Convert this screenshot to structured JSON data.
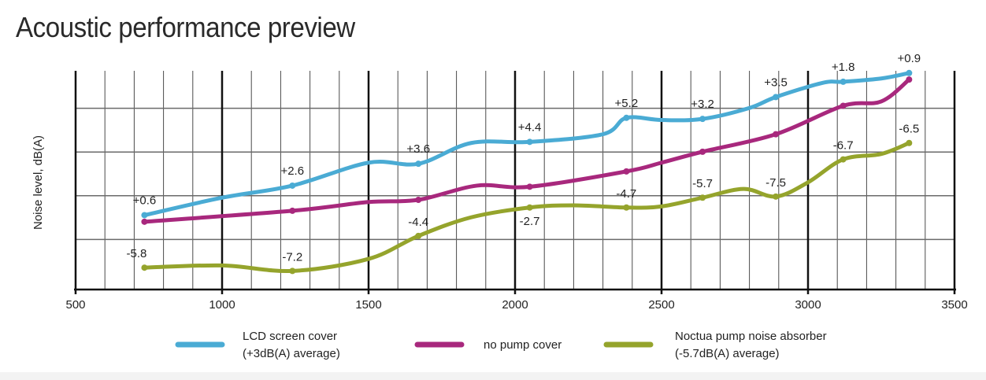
{
  "chart_data": {
    "type": "line",
    "title": "Acoustic performance preview",
    "xlabel": "",
    "ylabel": "Noise level, dB(A)",
    "xlim": [
      500,
      3500
    ],
    "x_ticks": [
      "500",
      "1000",
      "1500",
      "2000",
      "2500",
      "3000",
      "3500"
    ],
    "ylim": [
      0,
      100
    ],
    "grid": true,
    "legend": "bottom",
    "series": [
      {
        "name": "LCD screen cover (+3dB(A) average)",
        "legend_lines": [
          "LCD screen cover",
          "(+3dB(A) average)"
        ],
        "color": "#4aabd4",
        "x": [
          735,
          1000,
          1240,
          1500,
          1670,
          1850,
          2050,
          2300,
          2380,
          2500,
          2640,
          2800,
          2890,
          3050,
          3120,
          3250,
          3345
        ],
        "y": [
          34,
          42,
          47.5,
          58,
          57.5,
          67,
          67.5,
          71,
          78.5,
          77.5,
          78,
          83,
          88,
          94.5,
          95,
          96.5,
          99
        ],
        "point_x": [
          735,
          1240,
          1670,
          2050,
          2380,
          2640,
          2890,
          3120,
          3345
        ],
        "labels": [
          "+0.6",
          "+2.6",
          "+3.6",
          "+4.4",
          "+5.2",
          "+3.2",
          "+3.5",
          "+1.8",
          "+0.9"
        ]
      },
      {
        "name": "no pump cover",
        "legend_lines": [
          "no pump cover"
        ],
        "color": "#a8287d",
        "x": [
          735,
          1240,
          1500,
          1670,
          1870,
          2050,
          2380,
          2500,
          2640,
          2890,
          3120,
          3250,
          3345
        ],
        "y": [
          31,
          36,
          40,
          41,
          47.5,
          47,
          54,
          58,
          63,
          71,
          84,
          86,
          96
        ],
        "point_x": [
          735,
          1240,
          1670,
          2050,
          2380,
          2640,
          2890,
          3120,
          3345
        ],
        "labels": []
      },
      {
        "name": "Noctua pump noise absorber (-5.7dB(A) average)",
        "legend_lines": [
          "Noctua pump noise absorber",
          "(-5.7dB(A) average)"
        ],
        "color": "#95a42c",
        "x": [
          735,
          1000,
          1240,
          1500,
          1670,
          1850,
          2050,
          2200,
          2380,
          2500,
          2640,
          2780,
          2890,
          3000,
          3120,
          3250,
          3345
        ],
        "y": [
          10,
          11,
          8.5,
          14,
          24.5,
          33,
          37.5,
          38.5,
          37.5,
          38,
          42,
          46,
          42.5,
          49,
          59.5,
          62,
          67
        ],
        "point_x": [
          735,
          1240,
          1670,
          2050,
          2380,
          2640,
          2890,
          3120,
          3345
        ],
        "labels": [
          "-5.8",
          "-7.2",
          "-4.4",
          "-2.7",
          "-4.7",
          "-5.7",
          "-7.5",
          "-6.7",
          "-6.5"
        ]
      }
    ]
  }
}
